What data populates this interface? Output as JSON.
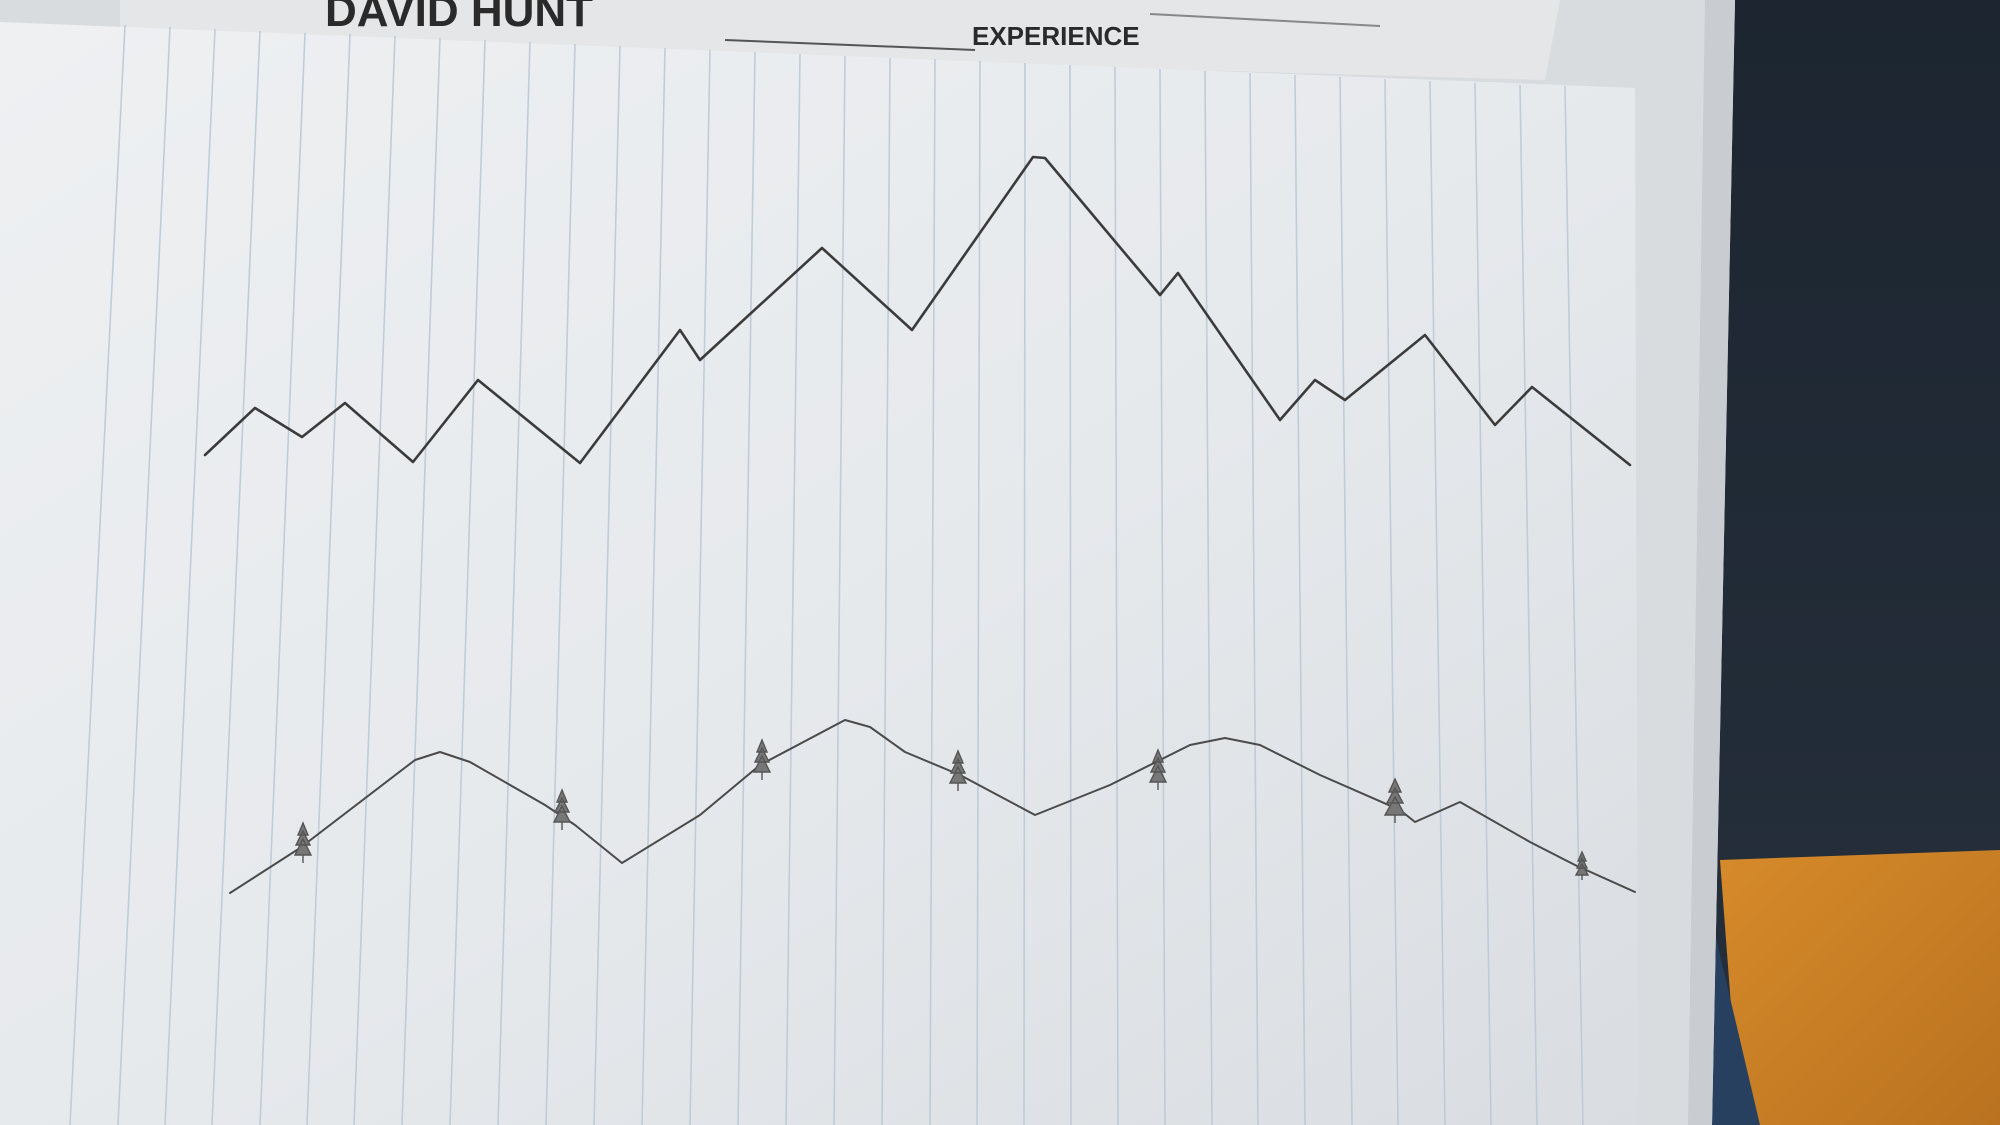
{
  "background_sheet": {
    "name_text": "DAVID HUNT",
    "section_heading": "EXPERIENCE"
  },
  "colors": {
    "table_dark": "#202a36",
    "table_wood": "#d68a2a",
    "cloth_blue": "#27405f",
    "paper_white": "#e9ebed",
    "paper_shadow": "#d6d9dc",
    "ruling_blue": "#b9c7d6",
    "pencil": "#3b3b3b"
  },
  "icons": {
    "tree": "pine-tree-sketch-icon"
  }
}
